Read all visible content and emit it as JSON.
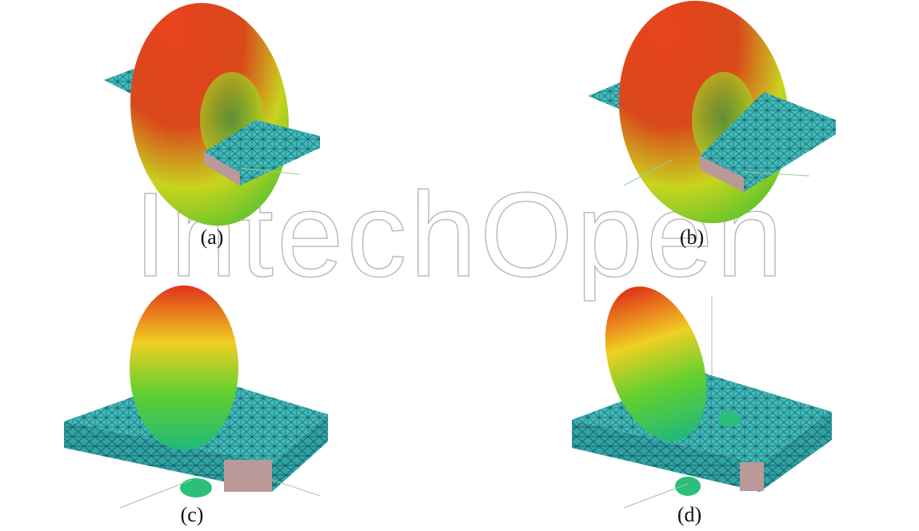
{
  "figure": {
    "panels": [
      {
        "label": "(a)"
      },
      {
        "label": "(b)"
      },
      {
        "label": "(c)"
      },
      {
        "label": "(d)"
      }
    ],
    "watermark": "IntechOpen"
  }
}
